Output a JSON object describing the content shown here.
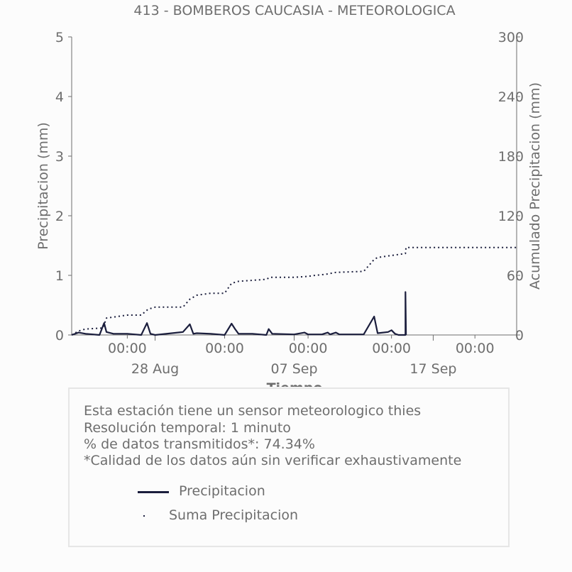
{
  "chart_data": {
    "type": "line",
    "title": "413 - BOMBEROS CAUCASIA - METEOROLOGICA",
    "xlabel": "Tiempo",
    "ylabel": "Precipitacion (mm)",
    "y2label": "Acumulado Precipitacion (mm)",
    "ylim": [
      0,
      5
    ],
    "y2lim": [
      0,
      300
    ],
    "yticks": [
      "0",
      "1",
      "2",
      "3",
      "4",
      "5"
    ],
    "y2ticks": [
      "0",
      "60",
      "120",
      "180",
      "240",
      "300"
    ],
    "xlim": [
      "2023-08-22",
      "2023-09-23"
    ],
    "xticks_time": [
      {
        "x": "2023-08-26",
        "label": "00:00"
      },
      {
        "x": "2023-09-02",
        "label": "00:00"
      },
      {
        "x": "2023-09-08",
        "label": "00:00"
      },
      {
        "x": "2023-09-14",
        "label": "00:00"
      },
      {
        "x": "2023-09-20",
        "label": "00:00"
      }
    ],
    "xticks_date": [
      {
        "x": "2023-08-28",
        "label": "28 Aug"
      },
      {
        "x": "2023-09-07",
        "label": "07 Sep"
      },
      {
        "x": "2023-09-17",
        "label": "17 Sep"
      }
    ],
    "grid": false,
    "series": [
      {
        "name": "Precipitacion",
        "color": "#1b1e3d",
        "style": "solid",
        "axis": "left",
        "points": [
          [
            "2023-08-22",
            0
          ],
          [
            "2023-08-22T12:00",
            0.04
          ],
          [
            "2023-08-23",
            0.02
          ],
          [
            "2023-08-24",
            0
          ],
          [
            "2023-08-24T08:00",
            0.2
          ],
          [
            "2023-08-24T12:00",
            0.05
          ],
          [
            "2023-08-25",
            0.02
          ],
          [
            "2023-08-26",
            0.02
          ],
          [
            "2023-08-27",
            0
          ],
          [
            "2023-08-27T10:00",
            0.2
          ],
          [
            "2023-08-27T16:00",
            0.02
          ],
          [
            "2023-08-28",
            0
          ],
          [
            "2023-08-30",
            0.05
          ],
          [
            "2023-08-30T12:00",
            0.18
          ],
          [
            "2023-08-30T18:00",
            0.02
          ],
          [
            "2023-08-31",
            0.03
          ],
          [
            "2023-09-01",
            0.02
          ],
          [
            "2023-09-02",
            0
          ],
          [
            "2023-09-02T12:00",
            0.19
          ],
          [
            "2023-09-02T18:00",
            0.1
          ],
          [
            "2023-09-03",
            0.02
          ],
          [
            "2023-09-04",
            0.02
          ],
          [
            "2023-09-05",
            0
          ],
          [
            "2023-09-05T04:00",
            0.1
          ],
          [
            "2023-09-05T10:00",
            0.02
          ],
          [
            "2023-09-07",
            0.01
          ],
          [
            "2023-09-07T18:00",
            0.04
          ],
          [
            "2023-09-08",
            0.01
          ],
          [
            "2023-09-09",
            0.01
          ],
          [
            "2023-09-09T10:00",
            0.04
          ],
          [
            "2023-09-09T14:00",
            0.01
          ],
          [
            "2023-09-10",
            0.04
          ],
          [
            "2023-09-10T06:00",
            0.01
          ],
          [
            "2023-09-11",
            0.01
          ],
          [
            "2023-09-12",
            0.01
          ],
          [
            "2023-09-12T18:00",
            0.31
          ],
          [
            "2023-09-13",
            0.03
          ],
          [
            "2023-09-13T18:00",
            0.05
          ],
          [
            "2023-09-14",
            0.08
          ],
          [
            "2023-09-14T06:00",
            0.02
          ],
          [
            "2023-09-14T12:00",
            0
          ],
          [
            "2023-09-15",
            0
          ],
          [
            "2023-09-15T00:00",
            0.72
          ],
          [
            "2023-09-15T01:00",
            0
          ]
        ]
      },
      {
        "name": "Suma Precipitacion",
        "color": "#1b1e3d",
        "style": "dotted",
        "axis": "right",
        "points": [
          [
            "2023-08-22",
            0
          ],
          [
            "2023-08-22T12:00",
            4
          ],
          [
            "2023-08-23",
            6
          ],
          [
            "2023-08-24T06:00",
            7
          ],
          [
            "2023-08-24T12:00",
            17
          ],
          [
            "2023-08-25",
            18
          ],
          [
            "2023-08-26",
            20
          ],
          [
            "2023-08-27",
            20
          ],
          [
            "2023-08-27T12:00",
            26
          ],
          [
            "2023-08-28",
            28
          ],
          [
            "2023-08-30",
            28
          ],
          [
            "2023-08-30T12:00",
            36
          ],
          [
            "2023-08-31",
            40
          ],
          [
            "2023-09-01",
            42
          ],
          [
            "2023-09-02",
            42
          ],
          [
            "2023-09-02T12:00",
            52
          ],
          [
            "2023-09-03",
            54
          ],
          [
            "2023-09-05",
            56
          ],
          [
            "2023-09-05T06:00",
            58
          ],
          [
            "2023-09-07",
            58
          ],
          [
            "2023-09-08",
            59
          ],
          [
            "2023-09-08T12:00",
            60
          ],
          [
            "2023-09-09T06:00",
            61
          ],
          [
            "2023-09-10",
            63
          ],
          [
            "2023-09-12",
            64
          ],
          [
            "2023-09-12T18:00",
            76
          ],
          [
            "2023-09-13",
            78
          ],
          [
            "2023-09-14",
            80
          ],
          [
            "2023-09-15",
            82
          ],
          [
            "2023-09-15T01:00",
            88
          ],
          [
            "2023-09-23",
            88
          ]
        ]
      }
    ]
  },
  "info": {
    "lines": [
      "Esta estación tiene un sensor meteorologico thies",
      "Resolución temporal: 1 minuto",
      "% de datos transmitidos*: 74.34%",
      "*Calidad de los datos aún sin verificar exhaustivamente"
    ],
    "legend": [
      "Precipitacion",
      "Suma Precipitacion"
    ]
  }
}
